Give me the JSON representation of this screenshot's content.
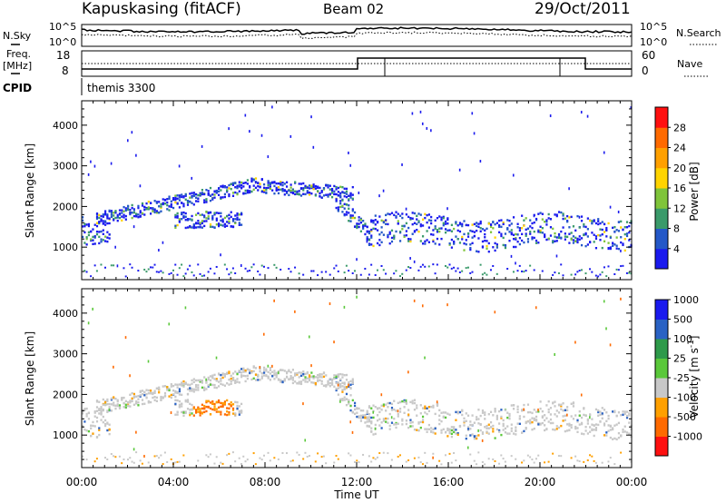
{
  "header": {
    "station": "Kapuskasing (fitACF)",
    "beam": "Beam 02",
    "date": "29/Oct/2011"
  },
  "noise_panel": {
    "left_label": "N.Sky",
    "right_label": "N.Search",
    "left_ticks": [
      "10^5",
      "10^0"
    ],
    "right_ticks": [
      "10^5",
      "10^0"
    ]
  },
  "freq_panel": {
    "left_label_1": "Freq.",
    "left_label_2": "[MHz]",
    "right_label": "Nave",
    "left_ticks": [
      "18",
      "8"
    ],
    "right_ticks": [
      "60",
      "0"
    ]
  },
  "cpid": {
    "label": "CPID",
    "value": "themis 3300"
  },
  "time_axis": {
    "label": "Time UT",
    "ticks": [
      "00:00",
      "04:00",
      "08:00",
      "12:00",
      "16:00",
      "20:00",
      "00:00"
    ]
  },
  "range_axis": {
    "label": "Slant Range [km]",
    "ticks": [
      "1000",
      "2000",
      "3000",
      "4000"
    ]
  },
  "power_colorbar": {
    "label": "Power [dB]",
    "ticks": [
      "4",
      "8",
      "12",
      "16",
      "20",
      "24",
      "28"
    ],
    "colors": [
      "#1a1aee",
      "#2458c8",
      "#3a9a6a",
      "#7fc43a",
      "#ffd400",
      "#ffa000",
      "#ff6a00",
      "#ff1010"
    ]
  },
  "velocity_colorbar": {
    "label": "Velocity [m s",
    "label_sup": "-1",
    "label_end": "]",
    "ticks": [
      "1000",
      "500",
      "100",
      "25",
      "-25",
      "-100",
      "-500",
      "-1000"
    ],
    "colors": [
      "#1a1aee",
      "#2a62c4",
      "#2e9a4a",
      "#5ac83a",
      "#c8c8c8",
      "#ffa000",
      "#ff6a00",
      "#ff1010"
    ]
  },
  "chart_data": [
    {
      "type": "heatmap",
      "title": "Power",
      "xlabel": "Time UT",
      "ylabel": "Slant Range [km]",
      "xlim": [
        "00:00",
        "24:00"
      ],
      "ylim": [
        200,
        4600
      ],
      "colorbar": {
        "label": "Power [dB]",
        "range": [
          0,
          32
        ]
      }
    },
    {
      "type": "heatmap",
      "title": "Velocity",
      "xlabel": "Time UT",
      "ylabel": "Slant Range [km]",
      "xlim": [
        "00:00",
        "24:00"
      ],
      "ylim": [
        200,
        4600
      ],
      "colorbar": {
        "label": "Velocity [m s-1]",
        "range": [
          -1000,
          1000
        ]
      }
    }
  ]
}
